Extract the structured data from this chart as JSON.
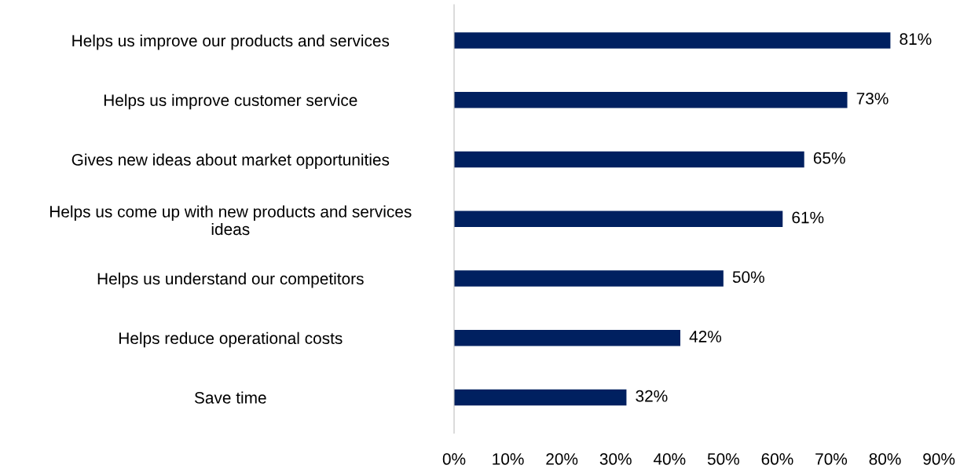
{
  "chart_data": {
    "type": "bar",
    "orientation": "horizontal",
    "categories": [
      "Helps us improve our products and services",
      "Helps us improve customer service",
      "Gives new ideas about market opportunities",
      "Helps us come up with new products and services ideas",
      "Helps us understand our competitors",
      "Helps reduce operational costs",
      "Save time"
    ],
    "values": [
      81,
      73,
      65,
      61,
      50,
      42,
      32
    ],
    "value_labels": [
      "81%",
      "73%",
      "65%",
      "61%",
      "50%",
      "42%",
      "32%"
    ],
    "color": "#002060",
    "xlim": [
      0,
      90
    ],
    "xticks": [
      {
        "value": 0,
        "label": "0%"
      },
      {
        "value": 10,
        "label": "10%"
      },
      {
        "value": 20,
        "label": "20%"
      },
      {
        "value": 30,
        "label": "30%"
      },
      {
        "value": 40,
        "label": "40%"
      },
      {
        "value": 50,
        "label": "50%"
      },
      {
        "value": 60,
        "label": "60%"
      },
      {
        "value": 70,
        "label": "70%"
      },
      {
        "value": 80,
        "label": "80%"
      },
      {
        "value": 90,
        "label": "90%"
      }
    ],
    "grid": false,
    "legend": false
  }
}
